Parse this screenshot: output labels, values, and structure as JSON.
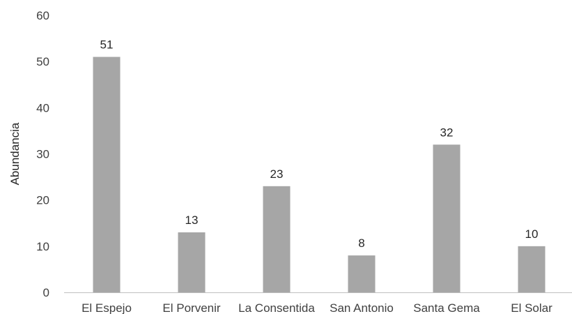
{
  "chart_data": {
    "type": "bar",
    "categories": [
      "El Espejo",
      "El Porvenir",
      "La Consentida",
      "San Antonio",
      "Santa Gema",
      "El Solar"
    ],
    "values": [
      51,
      13,
      23,
      8,
      32,
      10
    ],
    "data_labels": [
      "51",
      "13",
      "23",
      "8",
      "32",
      "10"
    ],
    "title": "",
    "xlabel": "",
    "ylabel": "Abundancia",
    "ylim": [
      0,
      60
    ],
    "yticks": [
      0,
      10,
      20,
      30,
      40,
      50,
      60
    ],
    "ytick_labels": [
      "0",
      "10",
      "20",
      "30",
      "40",
      "50",
      "60"
    ],
    "grid": false,
    "legend": "none",
    "bar_color": "#a6a6a6",
    "axis_color": "#bfbfbf"
  }
}
